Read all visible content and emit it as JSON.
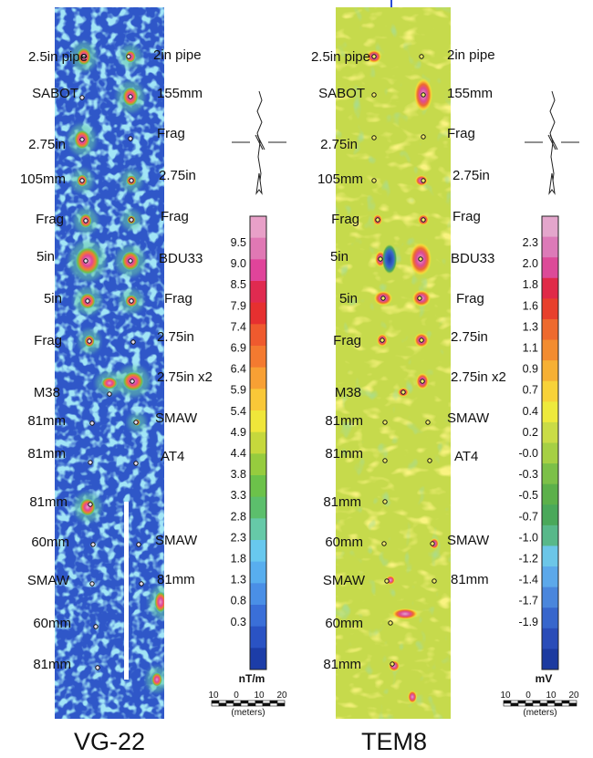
{
  "colors": {
    "vg_bg": "#2f57c8",
    "vg_ramp": [
      "#1c3da8",
      "#2a53c4",
      "#3a6fd8",
      "#4a8fe6",
      "#58aeee",
      "#68c8ee",
      "#66c9a8",
      "#5cbf6c",
      "#6cc24a",
      "#96cc3e",
      "#c6d83c",
      "#f0e63a",
      "#f9c838",
      "#f8a034",
      "#f47a30",
      "#ef5a2e",
      "#e63030",
      "#e02a50",
      "#e0449a",
      "#e078b4",
      "#e8a0c8"
    ],
    "tem_bg": "#c6da4c",
    "tem_ramp": [
      "#1c3aa0",
      "#2a4cb8",
      "#3766cc",
      "#4a86dc",
      "#5ca8ea",
      "#6cc6e8",
      "#58b88a",
      "#4aa85a",
      "#5cb04a",
      "#7cc048",
      "#a6d044",
      "#cadc46",
      "#eeea3c",
      "#f8d238",
      "#f6b034",
      "#f28c30",
      "#ee6a2e",
      "#e8402c",
      "#e02a48",
      "#dc4a98",
      "#dc7ab8",
      "#e4a6cc"
    ]
  },
  "panels": [
    {
      "id": "vg22",
      "title": "VG-22",
      "targets_left": [
        "2.5in pipe",
        "SABOT",
        "2.75in",
        "105mm",
        "Frag",
        "5in",
        "5in",
        "Frag",
        "M38",
        "81mm",
        "81mm",
        "81mm",
        "60mm",
        "SMAW",
        "60mm",
        "81mm"
      ],
      "targets_right": [
        "2in  pipe",
        "155mm",
        "Frag",
        "2.75in",
        "Frag",
        "BDU33",
        "Frag",
        "2.75in",
        "2.75in  x2",
        "SMAW",
        "AT4",
        "SMAW",
        "81mm"
      ],
      "legend": {
        "ticks": [
          "9.5",
          "9.0",
          "8.5",
          "7.9",
          "7.4",
          "6.9",
          "6.4",
          "5.9",
          "5.4",
          "4.9",
          "4.4",
          "3.8",
          "3.3",
          "2.8",
          "2.3",
          "1.8",
          "1.3",
          "0.8",
          "0.3"
        ],
        "unit": "nT/m"
      },
      "scale": {
        "ticks": [
          "10",
          "0",
          "10",
          "20"
        ],
        "label": "(meters)"
      }
    },
    {
      "id": "tem8",
      "title": "TEM8",
      "targets_left": [
        "2.5in pipe",
        "SABOT",
        "2.75in",
        "105mm",
        "Frag",
        "5in",
        "5in",
        "Frag",
        "M38",
        "81mm",
        "81mm",
        "81mm",
        "60mm",
        "SMAW",
        "60mm",
        "81mm"
      ],
      "targets_right": [
        "2in  pipe",
        "155mm",
        "Frag",
        "2.75in",
        "Frag",
        "BDU33",
        "Frag",
        "2.75in",
        "2.75in  x2",
        "SMAW",
        "AT4",
        "SMAW",
        "81mm"
      ],
      "legend": {
        "ticks": [
          "2.3",
          "2.0",
          "1.8",
          "1.6",
          "1.3",
          "1.1",
          "0.9",
          "0.7",
          "0.4",
          "0.2",
          "-0.0",
          "-0.3",
          "-0.5",
          "-0.7",
          "-1.0",
          "-1.2",
          "-1.4",
          "-1.7",
          "-1.9"
        ],
        "unit": "mV"
      },
      "scale": {
        "ticks": [
          "10",
          "0",
          "10",
          "20"
        ],
        "label": "(meters)"
      }
    }
  ]
}
